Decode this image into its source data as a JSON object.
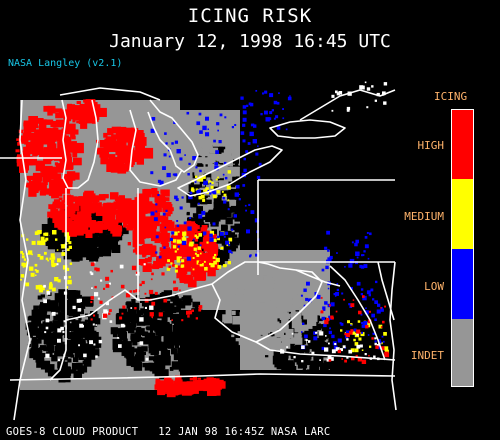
{
  "header": {
    "title": "ICING RISK",
    "subtitle": "January 12, 1998 16:45 UTC",
    "credit": "NASA Langley (v2.1)"
  },
  "footer": {
    "text": "GOES-8 CLOUD PRODUCT   12 JAN 98 16:45Z NASA LARC"
  },
  "legend": {
    "title": "ICING",
    "items": [
      {
        "label": "HIGH",
        "color": "#ff0000"
      },
      {
        "label": "MEDIUM",
        "color": "#ffff00"
      },
      {
        "label": "LOW",
        "color": "#0000ff"
      },
      {
        "label": "INDET",
        "color": "#969696"
      }
    ]
  },
  "colors": {
    "high": "#ff0000",
    "medium": "#ffff00",
    "low": "#0000ff",
    "indet": "#969696",
    "boundary": "#ffffff",
    "background": "#000000"
  }
}
